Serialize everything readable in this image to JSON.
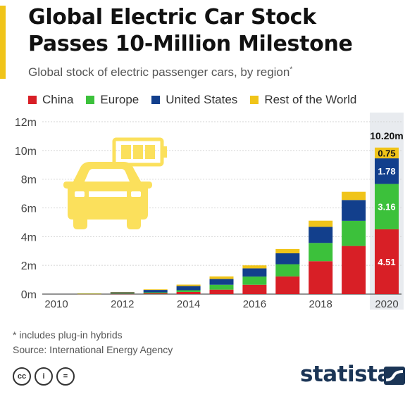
{
  "header": {
    "title_line1": "Global Electric Car Stock",
    "title_line2": "Passes 10-Million Milestone",
    "subtitle": "Global stock of electric passenger cars, by region",
    "subtitle_mark": "*"
  },
  "colors": {
    "accent": "#f0c419",
    "china": "#d81f26",
    "europe": "#3cc13b",
    "united_states": "#123f8c",
    "rest_of_world": "#f0c419",
    "brand": "#1b3556",
    "highlight_band": "#e8ebef",
    "icon": "#fbe05c"
  },
  "chart_data": {
    "type": "bar",
    "stacked": true,
    "categories": [
      "2010",
      "2011",
      "2012",
      "2013",
      "2014",
      "2015",
      "2016",
      "2017",
      "2018",
      "2019",
      "2020"
    ],
    "series": [
      {
        "name": "China",
        "values": [
          0.0,
          0.01,
          0.02,
          0.05,
          0.15,
          0.31,
          0.65,
          1.23,
          2.29,
          3.35,
          4.51
        ]
      },
      {
        "name": "Europe",
        "values": [
          0.0,
          0.01,
          0.04,
          0.07,
          0.12,
          0.34,
          0.57,
          0.85,
          1.27,
          1.75,
          3.16
        ]
      },
      {
        "name": "United States",
        "values": [
          0.0,
          0.02,
          0.07,
          0.17,
          0.29,
          0.4,
          0.57,
          0.76,
          1.12,
          1.45,
          1.78
        ]
      },
      {
        "name": "Rest of the World",
        "values": [
          0.0,
          0.01,
          0.02,
          0.04,
          0.1,
          0.18,
          0.21,
          0.3,
          0.43,
          0.57,
          0.75
        ]
      }
    ],
    "ylim": [
      0,
      12
    ],
    "yticks": [
      "0m",
      "2m",
      "4m",
      "6m",
      "8m",
      "10m",
      "12m"
    ],
    "xtick_labels": [
      "2010",
      "",
      "2012",
      "",
      "2014",
      "",
      "2016",
      "",
      "2018",
      "",
      "2020"
    ],
    "data_labels": {
      "category": "2020",
      "segments": [
        "4.51",
        "3.16",
        "1.78",
        "0.75"
      ],
      "total": "10.20m"
    },
    "grid": true,
    "legend_position": "top-left",
    "xlabel": "",
    "ylabel": ""
  },
  "footer": {
    "note": "* includes plug-in hybrids",
    "source": "Source: International Energy Agency",
    "brand": "statista",
    "cc_icon_labels": [
      "cc",
      "i",
      "="
    ]
  }
}
